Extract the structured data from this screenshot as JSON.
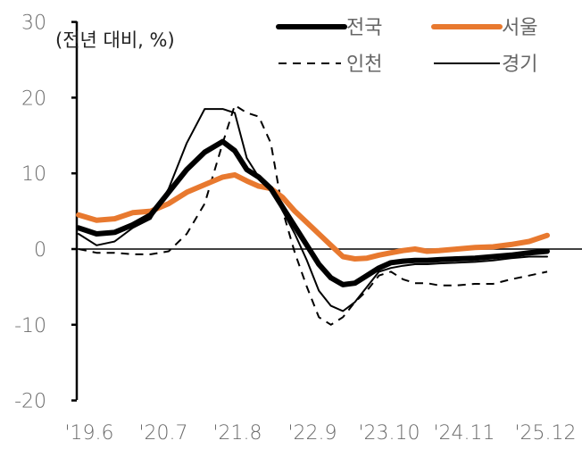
{
  "chart_data": {
    "type": "line",
    "title": "",
    "unit_label": "(전년 대비, %)",
    "xlabel": "",
    "ylabel": "(전년 대비, %)",
    "ylim": [
      -20,
      30
    ],
    "yticks": [
      30,
      20,
      10,
      0,
      -10,
      -20
    ],
    "xtick_labels": [
      "'19.6",
      "'20.7",
      "'21.8",
      "'22.9",
      "'23.10",
      "'24.11",
      "'25.12"
    ],
    "grid": false,
    "legend_position": "top-right",
    "x_months": [
      0,
      3,
      6,
      9,
      12,
      15,
      18,
      21,
      24,
      26,
      28,
      30,
      32,
      34,
      36,
      38,
      40,
      42,
      44,
      46,
      48,
      50,
      52,
      54,
      56,
      58,
      60,
      63,
      66,
      69,
      72,
      75,
      78
    ],
    "series": [
      {
        "name": "전국",
        "style": "thick-solid",
        "color": "#000000",
        "values": [
          2.8,
          2.0,
          2.2,
          3.2,
          4.5,
          7.5,
          10.5,
          12.8,
          14.2,
          13.0,
          10.5,
          9.5,
          8.0,
          5.5,
          3.0,
          0.5,
          -2.0,
          -3.8,
          -4.7,
          -4.5,
          -3.5,
          -2.5,
          -1.8,
          -1.6,
          -1.5,
          -1.5,
          -1.4,
          -1.3,
          -1.2,
          -1.0,
          -0.8,
          -0.5,
          -0.3
        ]
      },
      {
        "name": "서울",
        "style": "thick-solid",
        "color": "#E8792F",
        "values": [
          4.5,
          3.8,
          4.0,
          4.8,
          5.0,
          6.0,
          7.5,
          8.5,
          9.5,
          9.8,
          9.0,
          8.3,
          8.0,
          6.8,
          5.0,
          3.5,
          2.0,
          0.5,
          -1.0,
          -1.3,
          -1.2,
          -0.8,
          -0.5,
          -0.2,
          0.0,
          -0.3,
          -0.2,
          0.0,
          0.2,
          0.3,
          0.6,
          1.0,
          1.8
        ]
      },
      {
        "name": "인천",
        "style": "dashed",
        "color": "#000000",
        "values": [
          0.0,
          -0.5,
          -0.5,
          -0.7,
          -0.7,
          -0.3,
          2.0,
          6.0,
          14.0,
          19.0,
          18.0,
          17.5,
          14.0,
          5.0,
          -0.5,
          -5.0,
          -9.0,
          -10.0,
          -9.0,
          -7.0,
          -5.5,
          -3.5,
          -3.0,
          -4.0,
          -4.5,
          -4.5,
          -4.8,
          -4.8,
          -4.6,
          -4.6,
          -4.0,
          -3.5,
          -3.0
        ]
      },
      {
        "name": "경기",
        "style": "thin-solid",
        "color": "#000000",
        "values": [
          2.0,
          0.5,
          1.0,
          2.8,
          4.0,
          8.0,
          14.0,
          18.5,
          18.5,
          18.0,
          12.0,
          9.5,
          8.0,
          5.0,
          2.0,
          -1.5,
          -5.5,
          -7.5,
          -8.2,
          -7.0,
          -5.0,
          -3.0,
          -2.5,
          -2.2,
          -2.0,
          -2.0,
          -1.9,
          -1.8,
          -1.7,
          -1.5,
          -1.2,
          -1.0,
          -1.0
        ]
      }
    ]
  },
  "legend": [
    {
      "label": "전국"
    },
    {
      "label": "서울"
    },
    {
      "label": "인천"
    },
    {
      "label": "경기"
    }
  ]
}
